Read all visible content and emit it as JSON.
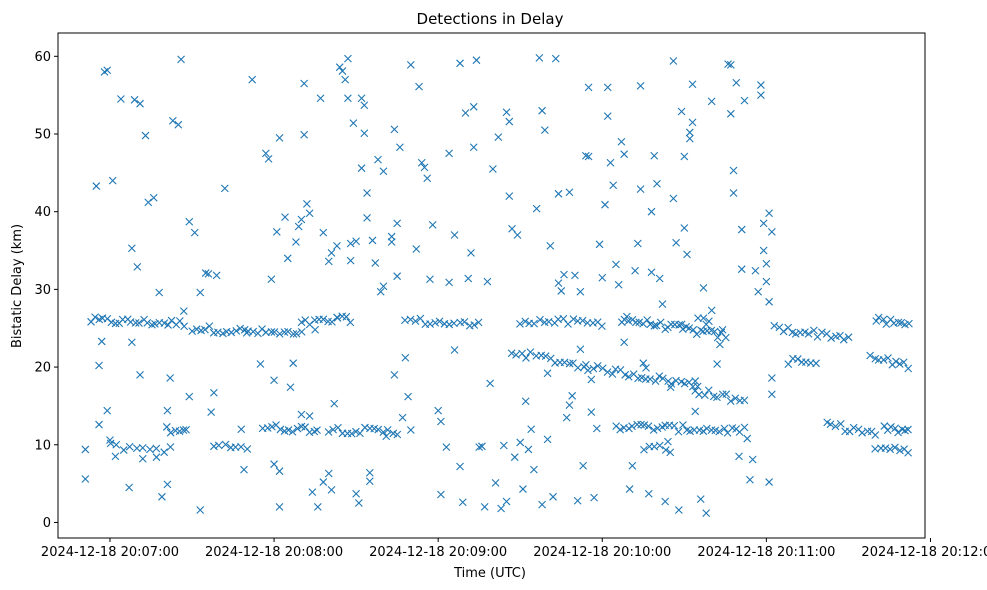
{
  "colors": {
    "marker": "#1f77b4",
    "axis": "#000000",
    "background": "#ffffff"
  },
  "chart_data": {
    "type": "scatter",
    "title": "Detections in Delay",
    "xlabel": "Time (UTC)",
    "ylabel": "Bistatic Delay (km)",
    "marker": "x",
    "grid": false,
    "x_units": "seconds after 2024-12-18 20:07:00 UTC",
    "xlim": [
      -19,
      298
    ],
    "ylim": [
      -2,
      63
    ],
    "x_ticks": [
      {
        "value": 0,
        "label": "2024-12-18 20:07:00"
      },
      {
        "value": 60,
        "label": "2024-12-18 20:08:00"
      },
      {
        "value": 120,
        "label": "2024-12-18 20:09:00"
      },
      {
        "value": 180,
        "label": "2024-12-18 20:10:00"
      },
      {
        "value": 240,
        "label": "2024-12-18 20:11:00"
      },
      {
        "value": 300,
        "label": "2024-12-18 20:12:00"
      }
    ],
    "y_ticks": [
      {
        "value": 0,
        "label": "0"
      },
      {
        "value": 10,
        "label": "10"
      },
      {
        "value": 20,
        "label": "20"
      },
      {
        "value": 30,
        "label": "30"
      },
      {
        "value": 40,
        "label": "40"
      },
      {
        "value": 50,
        "label": "50"
      },
      {
        "value": 60,
        "label": "60"
      }
    ],
    "tracks": [
      {
        "name": "track-1",
        "x_start": -7,
        "x_end": 27,
        "y_start": 26.0,
        "y_end": 25.6,
        "count": 24
      },
      {
        "name": "track-2",
        "x_start": 30,
        "x_end": 70,
        "y_start": 25.0,
        "y_end": 24.2,
        "count": 26
      },
      {
        "name": "track-3",
        "x_start": 70,
        "x_end": 88,
        "y_start": 25.6,
        "y_end": 26.2,
        "count": 12
      },
      {
        "name": "track-4",
        "x_start": 108,
        "x_end": 135,
        "y_start": 26.0,
        "y_end": 25.4,
        "count": 16
      },
      {
        "name": "track-5",
        "x_start": 150,
        "x_end": 180,
        "y_start": 26.0,
        "y_end": 25.6,
        "count": 18
      },
      {
        "name": "track-6",
        "x_start": 187,
        "x_end": 225,
        "y_start": 26.2,
        "y_end": 24.0,
        "count": 30
      },
      {
        "name": "track-7",
        "x_start": 243,
        "x_end": 270,
        "y_start": 25.0,
        "y_end": 23.8,
        "count": 18
      },
      {
        "name": "track-8",
        "x_start": 280,
        "x_end": 292,
        "y_start": 26.0,
        "y_end": 25.4,
        "count": 10
      },
      {
        "name": "track-9",
        "x_start": 147,
        "x_end": 180,
        "y_start": 22.0,
        "y_end": 19.6,
        "count": 20
      },
      {
        "name": "track-10",
        "x_start": 182,
        "x_end": 215,
        "y_start": 19.6,
        "y_end": 17.6,
        "count": 22
      },
      {
        "name": "track-11",
        "x_start": 214,
        "x_end": 232,
        "y_start": 17.0,
        "y_end": 15.6,
        "count": 12
      },
      {
        "name": "track-12",
        "x_start": 248,
        "x_end": 258,
        "y_start": 20.8,
        "y_end": 20.5,
        "count": 7
      },
      {
        "name": "track-13",
        "x_start": 278,
        "x_end": 292,
        "y_start": 21.2,
        "y_end": 20.2,
        "count": 10
      },
      {
        "name": "track-14",
        "x_start": 21,
        "x_end": 28,
        "y_start": 12.0,
        "y_end": 12.0,
        "count": 6
      },
      {
        "name": "track-15",
        "x_start": 56,
        "x_end": 76,
        "y_start": 12.2,
        "y_end": 12.0,
        "count": 14
      },
      {
        "name": "track-16",
        "x_start": 80,
        "x_end": 105,
        "y_start": 12.0,
        "y_end": 11.6,
        "count": 16
      },
      {
        "name": "track-17",
        "x_start": 185,
        "x_end": 232,
        "y_start": 12.4,
        "y_end": 11.8,
        "count": 32
      },
      {
        "name": "track-18",
        "x_start": 262,
        "x_end": 280,
        "y_start": 12.6,
        "y_end": 11.4,
        "count": 12
      },
      {
        "name": "track-19",
        "x_start": 283,
        "x_end": 292,
        "y_start": 12.0,
        "y_end": 11.8,
        "count": 8
      },
      {
        "name": "track-20",
        "x_start": 0,
        "x_end": 22,
        "y_start": 9.8,
        "y_end": 9.4,
        "count": 10
      },
      {
        "name": "track-21",
        "x_start": 40,
        "x_end": 50,
        "y_start": 9.8,
        "y_end": 9.8,
        "count": 6
      },
      {
        "name": "track-22",
        "x_start": 195,
        "x_end": 205,
        "y_start": 9.6,
        "y_end": 9.4,
        "count": 6
      },
      {
        "name": "track-23",
        "x_start": 280,
        "x_end": 292,
        "y_start": 9.8,
        "y_end": 9.4,
        "count": 8
      }
    ],
    "points": [
      [
        -9,
        9.4
      ],
      [
        -9,
        5.6
      ],
      [
        -5,
        43.3
      ],
      [
        -4,
        12.6
      ],
      [
        -4,
        20.2
      ],
      [
        -3,
        23.3
      ],
      [
        -2,
        58.0
      ],
      [
        -1,
        58.2
      ],
      [
        -1,
        14.4
      ],
      [
        0,
        10.6
      ],
      [
        1,
        44.0
      ],
      [
        2,
        8.5
      ],
      [
        4,
        54.5
      ],
      [
        7,
        4.5
      ],
      [
        8,
        35.3
      ],
      [
        8,
        23.2
      ],
      [
        9,
        54.4
      ],
      [
        10,
        32.9
      ],
      [
        11,
        53.9
      ],
      [
        11,
        19.0
      ],
      [
        12,
        8.2
      ],
      [
        13,
        49.8
      ],
      [
        14,
        41.2
      ],
      [
        16,
        41.8
      ],
      [
        17,
        8.4
      ],
      [
        18,
        29.6
      ],
      [
        19,
        3.3
      ],
      [
        21,
        14.4
      ],
      [
        21,
        4.9
      ],
      [
        22,
        18.6
      ],
      [
        23,
        51.7
      ],
      [
        25,
        51.2
      ],
      [
        26,
        59.6
      ],
      [
        27,
        27.2
      ],
      [
        29,
        38.7
      ],
      [
        29,
        16.2
      ],
      [
        31,
        37.3
      ],
      [
        33,
        1.6
      ],
      [
        33,
        29.6
      ],
      [
        35,
        32.1
      ],
      [
        36,
        32.0
      ],
      [
        37,
        14.2
      ],
      [
        38,
        9.8
      ],
      [
        38,
        16.7
      ],
      [
        39,
        31.8
      ],
      [
        42,
        43.0
      ],
      [
        48,
        12.0
      ],
      [
        49,
        6.8
      ],
      [
        50,
        24.4
      ],
      [
        52,
        57.0
      ],
      [
        55,
        20.4
      ],
      [
        57,
        47.5
      ],
      [
        58,
        46.8
      ],
      [
        59,
        31.3
      ],
      [
        60,
        18.3
      ],
      [
        60,
        7.5
      ],
      [
        61,
        37.4
      ],
      [
        62,
        6.6
      ],
      [
        62,
        2.0
      ],
      [
        62,
        49.5
      ],
      [
        64,
        39.3
      ],
      [
        65,
        34.0
      ],
      [
        66,
        17.4
      ],
      [
        67,
        20.5
      ],
      [
        68,
        36.1
      ],
      [
        69,
        38.1
      ],
      [
        70,
        39.0
      ],
      [
        70,
        13.9
      ],
      [
        71,
        49.9
      ],
      [
        71,
        56.5
      ],
      [
        72,
        41.0
      ],
      [
        73,
        39.8
      ],
      [
        73,
        13.7
      ],
      [
        74,
        3.9
      ],
      [
        75,
        24.8
      ],
      [
        76,
        2.0
      ],
      [
        77,
        54.6
      ],
      [
        78,
        37.3
      ],
      [
        78,
        5.2
      ],
      [
        80,
        6.3
      ],
      [
        80,
        33.6
      ],
      [
        81,
        34.7
      ],
      [
        81,
        4.2
      ],
      [
        82,
        15.3
      ],
      [
        83,
        35.6
      ],
      [
        83,
        26.4
      ],
      [
        84,
        58.6
      ],
      [
        85,
        58.1
      ],
      [
        86,
        57.0
      ],
      [
        87,
        59.7
      ],
      [
        87,
        54.6
      ],
      [
        88,
        33.7
      ],
      [
        88,
        35.9
      ],
      [
        89,
        51.4
      ],
      [
        90,
        36.2
      ],
      [
        90,
        3.7
      ],
      [
        91,
        2.5
      ],
      [
        92,
        54.6
      ],
      [
        92,
        45.6
      ],
      [
        93,
        50.1
      ],
      [
        93,
        53.7
      ],
      [
        94,
        42.4
      ],
      [
        94,
        39.2
      ],
      [
        95,
        6.4
      ],
      [
        95,
        5.3
      ],
      [
        96,
        36.3
      ],
      [
        97,
        33.4
      ],
      [
        98,
        46.7
      ],
      [
        99,
        29.7
      ],
      [
        100,
        30.4
      ],
      [
        100,
        45.2
      ],
      [
        101,
        11.1
      ],
      [
        103,
        36.1
      ],
      [
        103,
        36.8
      ],
      [
        104,
        50.6
      ],
      [
        104,
        19.0
      ],
      [
        105,
        38.5
      ],
      [
        105,
        31.7
      ],
      [
        106,
        48.3
      ],
      [
        107,
        13.5
      ],
      [
        108,
        21.2
      ],
      [
        109,
        16.2
      ],
      [
        110,
        58.9
      ],
      [
        110,
        11.9
      ],
      [
        112,
        35.2
      ],
      [
        113,
        56.1
      ],
      [
        114,
        46.3
      ],
      [
        115,
        45.7
      ],
      [
        116,
        44.3
      ],
      [
        117,
        31.3
      ],
      [
        118,
        38.3
      ],
      [
        120,
        14.4
      ],
      [
        121,
        3.6
      ],
      [
        121,
        13.0
      ],
      [
        123,
        9.7
      ],
      [
        124,
        30.9
      ],
      [
        124,
        47.5
      ],
      [
        126,
        37.0
      ],
      [
        126,
        22.2
      ],
      [
        128,
        59.1
      ],
      [
        128,
        7.2
      ],
      [
        129,
        2.6
      ],
      [
        130,
        52.7
      ],
      [
        131,
        31.4
      ],
      [
        132,
        34.7
      ],
      [
        133,
        53.5
      ],
      [
        133,
        48.3
      ],
      [
        134,
        59.5
      ],
      [
        135,
        9.7
      ],
      [
        136,
        9.8
      ],
      [
        137,
        2.0
      ],
      [
        138,
        31.0
      ],
      [
        139,
        17.9
      ],
      [
        140,
        45.5
      ],
      [
        141,
        5.1
      ],
      [
        142,
        49.6
      ],
      [
        143,
        1.8
      ],
      [
        144,
        9.9
      ],
      [
        145,
        2.7
      ],
      [
        145,
        52.8
      ],
      [
        146,
        51.6
      ],
      [
        146,
        42.0
      ],
      [
        147,
        37.8
      ],
      [
        148,
        8.4
      ],
      [
        149,
        37.0
      ],
      [
        150,
        10.3
      ],
      [
        151,
        4.3
      ],
      [
        152,
        15.6
      ],
      [
        153,
        9.4
      ],
      [
        154,
        12.0
      ],
      [
        155,
        6.8
      ],
      [
        156,
        40.4
      ],
      [
        157,
        59.8
      ],
      [
        158,
        53.0
      ],
      [
        158,
        2.3
      ],
      [
        159,
        50.5
      ],
      [
        160,
        10.7
      ],
      [
        160,
        19.2
      ],
      [
        161,
        35.6
      ],
      [
        162,
        3.3
      ],
      [
        163,
        59.7
      ],
      [
        164,
        42.3
      ],
      [
        164,
        30.8
      ],
      [
        165,
        29.8
      ],
      [
        166,
        31.9
      ],
      [
        167,
        13.5
      ],
      [
        168,
        42.5
      ],
      [
        168,
        15.1
      ],
      [
        169,
        16.3
      ],
      [
        170,
        31.8
      ],
      [
        171,
        2.8
      ],
      [
        172,
        29.7
      ],
      [
        172,
        22.3
      ],
      [
        173,
        7.3
      ],
      [
        174,
        47.2
      ],
      [
        174,
        20.3
      ],
      [
        175,
        47.1
      ],
      [
        175,
        56.0
      ],
      [
        176,
        14.2
      ],
      [
        176,
        18.4
      ],
      [
        177,
        3.2
      ],
      [
        178,
        12.1
      ],
      [
        179,
        35.8
      ],
      [
        180,
        31.5
      ],
      [
        181,
        40.9
      ],
      [
        182,
        56.0
      ],
      [
        182,
        52.3
      ],
      [
        183,
        46.3
      ],
      [
        184,
        43.4
      ],
      [
        185,
        33.2
      ],
      [
        186,
        30.6
      ],
      [
        187,
        49.0
      ],
      [
        188,
        47.4
      ],
      [
        188,
        23.2
      ],
      [
        189,
        26.5
      ],
      [
        190,
        4.3
      ],
      [
        191,
        7.3
      ],
      [
        192,
        32.4
      ],
      [
        193,
        35.9
      ],
      [
        194,
        42.9
      ],
      [
        194,
        56.2
      ],
      [
        195,
        20.5
      ],
      [
        196,
        19.9
      ],
      [
        197,
        3.7
      ],
      [
        198,
        40.0
      ],
      [
        198,
        32.2
      ],
      [
        199,
        47.2
      ],
      [
        200,
        43.6
      ],
      [
        201,
        31.4
      ],
      [
        202,
        28.1
      ],
      [
        203,
        2.7
      ],
      [
        204,
        10.4
      ],
      [
        205,
        17.4
      ],
      [
        206,
        59.4
      ],
      [
        206,
        41.7
      ],
      [
        207,
        36.0
      ],
      [
        208,
        1.6
      ],
      [
        209,
        25.5
      ],
      [
        209,
        52.9
      ],
      [
        210,
        37.9
      ],
      [
        210,
        47.1
      ],
      [
        211,
        34.5
      ],
      [
        212,
        49.4
      ],
      [
        212,
        50.2
      ],
      [
        213,
        51.5
      ],
      [
        213,
        56.4
      ],
      [
        214,
        18.2
      ],
      [
        214,
        14.3
      ],
      [
        215,
        26.3
      ],
      [
        216,
        3.0
      ],
      [
        217,
        26.3
      ],
      [
        217,
        30.2
      ],
      [
        218,
        1.2
      ],
      [
        218,
        25.5
      ],
      [
        219,
        25.9
      ],
      [
        220,
        27.3
      ],
      [
        220,
        54.2
      ],
      [
        222,
        20.4
      ],
      [
        223,
        22.9
      ],
      [
        224,
        24.8
      ],
      [
        226,
        59.0
      ],
      [
        227,
        58.9
      ],
      [
        227,
        52.6
      ],
      [
        228,
        45.3
      ],
      [
        228,
        42.4
      ],
      [
        229,
        56.6
      ],
      [
        230,
        8.5
      ],
      [
        231,
        32.6
      ],
      [
        231,
        37.7
      ],
      [
        232,
        54.3
      ],
      [
        233,
        10.8
      ],
      [
        234,
        5.5
      ],
      [
        235,
        8.1
      ],
      [
        236,
        32.4
      ],
      [
        237,
        29.7
      ],
      [
        238,
        55.0
      ],
      [
        238,
        56.3
      ],
      [
        239,
        38.5
      ],
      [
        239,
        35.0
      ],
      [
        240,
        33.3
      ],
      [
        240,
        31.0
      ],
      [
        241,
        39.8
      ],
      [
        241,
        28.4
      ],
      [
        241,
        5.2
      ],
      [
        242,
        37.4
      ],
      [
        242,
        16.5
      ],
      [
        242,
        18.6
      ]
    ]
  }
}
